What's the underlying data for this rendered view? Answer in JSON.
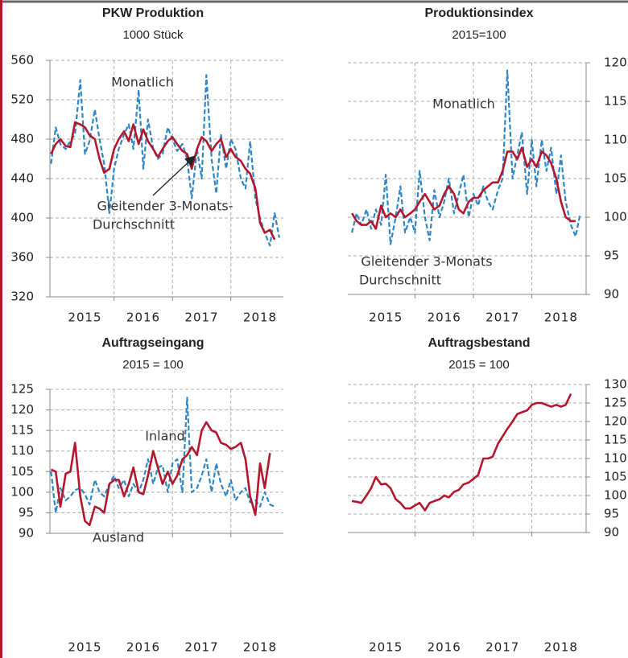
{
  "chart_data": [
    {
      "type": "line",
      "title": "PKW Produktion",
      "subtitle": "1000 Stück",
      "y_axis_side": "left",
      "grid": true,
      "x": [
        2014.92,
        2015,
        2015.08,
        2015.17,
        2015.25,
        2015.33,
        2015.42,
        2015.5,
        2015.58,
        2015.67,
        2015.75,
        2015.83,
        2015.92,
        2016,
        2016.08,
        2016.17,
        2016.25,
        2016.33,
        2016.42,
        2016.5,
        2016.58,
        2016.67,
        2016.75,
        2016.83,
        2016.92,
        2017,
        2017.08,
        2017.17,
        2017.25,
        2017.33,
        2017.42,
        2017.5,
        2017.58,
        2017.67,
        2017.75,
        2017.83,
        2017.92,
        2018,
        2018.08,
        2018.17,
        2018.25,
        2018.33,
        2018.42,
        2018.5,
        2018.58,
        2018.67,
        2018.75,
        2018.83
      ],
      "xlim": [
        2014.9,
        2018.9
      ],
      "xticks": [
        {
          "value": 2015.5,
          "label": "2015"
        },
        {
          "value": 2016.5,
          "label": "2016"
        },
        {
          "value": 2017.5,
          "label": "2017"
        },
        {
          "value": 2018.5,
          "label": "2018"
        }
      ],
      "xgrid": [
        2016,
        2017,
        2018
      ],
      "ylim": [
        320,
        560
      ],
      "yticks": [
        320,
        360,
        400,
        440,
        480,
        520,
        560
      ],
      "annotations": [
        "Gleitender 3-Monats-",
        "Durchschnitt"
      ],
      "series": [
        {
          "name": "Monatlich",
          "color": "#2f86c6",
          "dashed": true,
          "values": [
            455,
            492,
            475,
            470,
            478,
            485,
            540,
            465,
            478,
            510,
            480,
            455,
            405,
            450,
            470,
            485,
            495,
            470,
            530,
            450,
            500,
            470,
            460,
            465,
            492,
            480,
            468,
            475,
            460,
            420,
            470,
            440,
            545,
            460,
            425,
            485,
            450,
            480,
            470,
            440,
            430,
            478,
            420,
            400,
            385,
            372,
            405,
            380
          ]
        },
        {
          "color": "#b3172d",
          "dashed": false,
          "values": [
            465,
            475,
            480,
            473,
            472,
            497,
            495,
            492,
            484,
            480,
            460,
            446,
            450,
            470,
            480,
            488,
            478,
            495,
            475,
            490,
            478,
            470,
            462,
            470,
            478,
            482,
            475,
            468,
            465,
            450,
            470,
            482,
            478,
            468,
            475,
            480,
            462,
            470,
            462,
            458,
            450,
            445,
            430,
            395,
            385,
            388,
            378,
            null
          ]
        }
      ]
    },
    {
      "type": "line",
      "title": "Produktionsindex",
      "subtitle": "2015=100",
      "y_axis_side": "right",
      "grid": true,
      "x": [
        2014.92,
        2015,
        2015.08,
        2015.17,
        2015.25,
        2015.33,
        2015.42,
        2015.5,
        2015.58,
        2015.67,
        2015.75,
        2015.83,
        2015.92,
        2016,
        2016.08,
        2016.17,
        2016.25,
        2016.33,
        2016.42,
        2016.5,
        2016.58,
        2016.67,
        2016.75,
        2016.83,
        2016.92,
        2017,
        2017.08,
        2017.17,
        2017.25,
        2017.33,
        2017.42,
        2017.5,
        2017.58,
        2017.67,
        2017.75,
        2017.83,
        2017.92,
        2018,
        2018.08,
        2018.17,
        2018.25,
        2018.33,
        2018.42,
        2018.5,
        2018.58,
        2018.67,
        2018.75,
        2018.83
      ],
      "xlim": [
        2014.85,
        2018.93
      ],
      "xticks": [
        {
          "value": 2015.5,
          "label": "2015"
        },
        {
          "value": 2016.5,
          "label": "2016"
        },
        {
          "value": 2017.5,
          "label": "2017"
        },
        {
          "value": 2018.5,
          "label": "2018"
        }
      ],
      "xgrid": [
        2016,
        2017,
        2018
      ],
      "ylim": [
        90,
        120
      ],
      "yticks": [
        90,
        95,
        100,
        105,
        110,
        115,
        120
      ],
      "annotations": [
        "Gleitender 3-Monats",
        "Durchschnitt"
      ],
      "series": [
        {
          "name": "Monatlich",
          "color": "#2f86c6",
          "dashed": true,
          "values": [
            98,
            100.5,
            99,
            101,
            98.5,
            101,
            99,
            105.5,
            96.5,
            100,
            104,
            98,
            100,
            98,
            106,
            100,
            97,
            103.5,
            100,
            102,
            105,
            100.5,
            103,
            105.5,
            100,
            103,
            101.5,
            104,
            102,
            101,
            103.5,
            105,
            119,
            105,
            108,
            111,
            103,
            110,
            104,
            110,
            106,
            109,
            103,
            108,
            102,
            99,
            97.5,
            100.5
          ]
        },
        {
          "color": "#b3172d",
          "dashed": false,
          "values": [
            100.5,
            99.5,
            99,
            99,
            99.5,
            98.5,
            101.5,
            100,
            100.5,
            100,
            101,
            100,
            100.5,
            101,
            102,
            103,
            102,
            101,
            101.5,
            103,
            104,
            103,
            101,
            100.5,
            102,
            102.5,
            102.5,
            103.5,
            104,
            104.5,
            104.5,
            106,
            108.5,
            108.5,
            107.5,
            109,
            106.5,
            107.5,
            106.5,
            108.5,
            108,
            107,
            105,
            102,
            100,
            99.5,
            99.5,
            null
          ]
        }
      ]
    },
    {
      "type": "line",
      "title": "Auftragseingang",
      "subtitle": "2015 = 100",
      "y_axis_side": "left",
      "grid": true,
      "x": [
        2014.92,
        2015,
        2015.08,
        2015.17,
        2015.25,
        2015.33,
        2015.42,
        2015.5,
        2015.58,
        2015.67,
        2015.75,
        2015.83,
        2015.92,
        2016,
        2016.08,
        2016.17,
        2016.25,
        2016.33,
        2016.42,
        2016.5,
        2016.58,
        2016.67,
        2016.75,
        2016.83,
        2016.92,
        2017,
        2017.08,
        2017.17,
        2017.25,
        2017.33,
        2017.42,
        2017.5,
        2017.58,
        2017.67,
        2017.75,
        2017.83,
        2017.92,
        2018,
        2018.08,
        2018.17,
        2018.25,
        2018.33,
        2018.42,
        2018.5,
        2018.58,
        2018.67,
        2018.75,
        2018.83
      ],
      "xlim": [
        2014.9,
        2018.9
      ],
      "xticks": [
        {
          "value": 2015.5,
          "label": "2015"
        },
        {
          "value": 2016.5,
          "label": "2016"
        },
        {
          "value": 2017.5,
          "label": "2017"
        },
        {
          "value": 2018.5,
          "label": "2018"
        }
      ],
      "xgrid": [
        2016,
        2017,
        2018
      ],
      "ylim": [
        90,
        125
      ],
      "yticks": [
        90,
        95,
        100,
        105,
        110,
        115,
        120,
        125
      ],
      "series": [
        {
          "name": "Inland",
          "color": "#2f86c6",
          "dashed": true,
          "values": [
            105,
            95,
            101,
            98,
            99,
            100.5,
            101,
            99.5,
            97,
            103,
            100,
            99,
            102,
            104,
            101,
            103,
            99,
            102,
            100,
            103,
            108,
            102,
            106,
            106.5,
            100,
            107,
            108,
            100,
            123,
            100,
            101,
            104,
            108,
            100,
            107,
            102,
            99,
            103,
            98,
            100,
            101,
            97.5,
            98,
            96.5,
            100,
            97,
            96.5,
            null
          ]
        },
        {
          "name": "Ausland",
          "color": "#b3172d",
          "dashed": false,
          "values": [
            105.5,
            105,
            96.5,
            104.5,
            105,
            112,
            99,
            93,
            92,
            96.5,
            96,
            95,
            102,
            103,
            103,
            99,
            102,
            106,
            100,
            99.5,
            104,
            110,
            106,
            102,
            105,
            102,
            104,
            108,
            109,
            111,
            109,
            115,
            117,
            115,
            114.5,
            112,
            111.5,
            110.5,
            111,
            112,
            108,
            99,
            94.5,
            107,
            101,
            109.5,
            null,
            null
          ]
        }
      ]
    },
    {
      "type": "line",
      "title": "Auftragsbestand",
      "subtitle": "2015 = 100",
      "y_axis_side": "right",
      "grid": true,
      "x": [
        2014.92,
        2015,
        2015.08,
        2015.17,
        2015.25,
        2015.33,
        2015.42,
        2015.5,
        2015.58,
        2015.67,
        2015.75,
        2015.83,
        2015.92,
        2016,
        2016.08,
        2016.17,
        2016.25,
        2016.33,
        2016.42,
        2016.5,
        2016.58,
        2016.67,
        2016.75,
        2016.83,
        2016.92,
        2017,
        2017.08,
        2017.17,
        2017.25,
        2017.33,
        2017.42,
        2017.5,
        2017.58,
        2017.67,
        2017.75,
        2017.83,
        2017.92,
        2018,
        2018.08,
        2018.17,
        2018.25,
        2018.33,
        2018.42,
        2018.5,
        2018.58,
        2018.67,
        2018.75,
        2018.83
      ],
      "xlim": [
        2014.85,
        2018.93
      ],
      "xticks": [
        {
          "value": 2015.5,
          "label": "2015"
        },
        {
          "value": 2016.5,
          "label": "2016"
        },
        {
          "value": 2017.5,
          "label": "2017"
        },
        {
          "value": 2018.5,
          "label": "2018"
        }
      ],
      "xgrid": [
        2016,
        2017,
        2018
      ],
      "ylim": [
        90,
        130
      ],
      "yticks": [
        90,
        95,
        100,
        105,
        110,
        115,
        120,
        125,
        130
      ],
      "series": [
        {
          "color": "#b3172d",
          "dashed": false,
          "values": [
            98.5,
            98.3,
            98,
            100,
            102,
            105,
            103,
            103.2,
            102,
            99,
            98,
            96.5,
            96.5,
            97.3,
            98,
            96,
            98,
            98.5,
            99,
            100,
            99.5,
            101,
            101.5,
            103,
            103.5,
            104.5,
            105.5,
            110,
            110,
            110.5,
            114,
            116,
            118,
            120,
            122,
            122.5,
            123,
            124.5,
            125,
            125,
            124.5,
            124,
            124.5,
            124,
            124.5,
            127.5,
            null,
            null
          ]
        }
      ]
    }
  ]
}
